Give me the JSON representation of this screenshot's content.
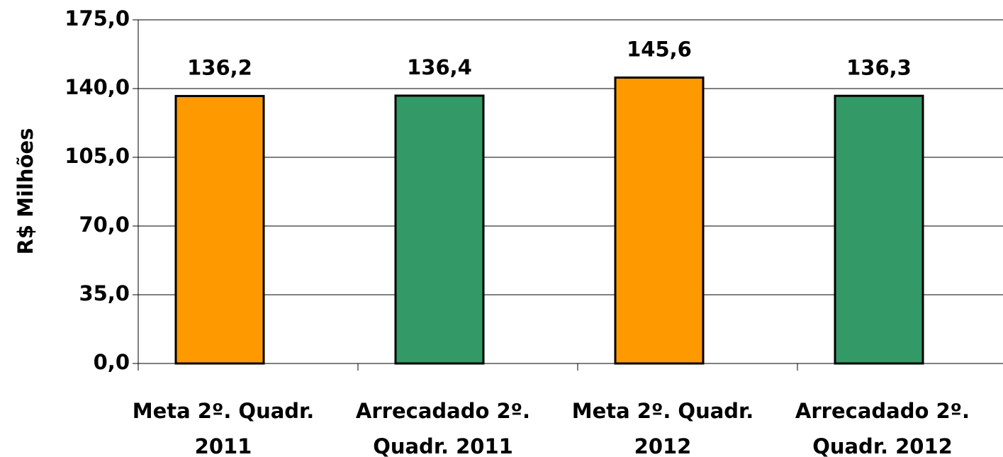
{
  "chart_data": {
    "type": "bar",
    "categories": [
      "Meta 2º. Quadr.\n2011",
      "Arrecadado 2º.\nQuadr. 2011",
      "Meta 2º. Quadr.\n2012",
      "Arrecadado 2º.\nQuadr. 2012"
    ],
    "values": [
      136.2,
      136.4,
      145.6,
      136.3
    ],
    "value_labels": [
      "136,2",
      "136,4",
      "145,6",
      "136,3"
    ],
    "colors": [
      "#ff9900",
      "#339966",
      "#ff9900",
      "#339966"
    ],
    "y_label": "R$ Milhões",
    "ylim": [
      0,
      175
    ],
    "yticks": [
      {
        "value": 0,
        "label": "0,0"
      },
      {
        "value": 35,
        "label": "35,0"
      },
      {
        "value": 70,
        "label": "70,0"
      },
      {
        "value": 105,
        "label": "105,0"
      },
      {
        "value": 140,
        "label": "140,0"
      },
      {
        "value": 175,
        "label": "175,0"
      }
    ],
    "grid": true
  }
}
